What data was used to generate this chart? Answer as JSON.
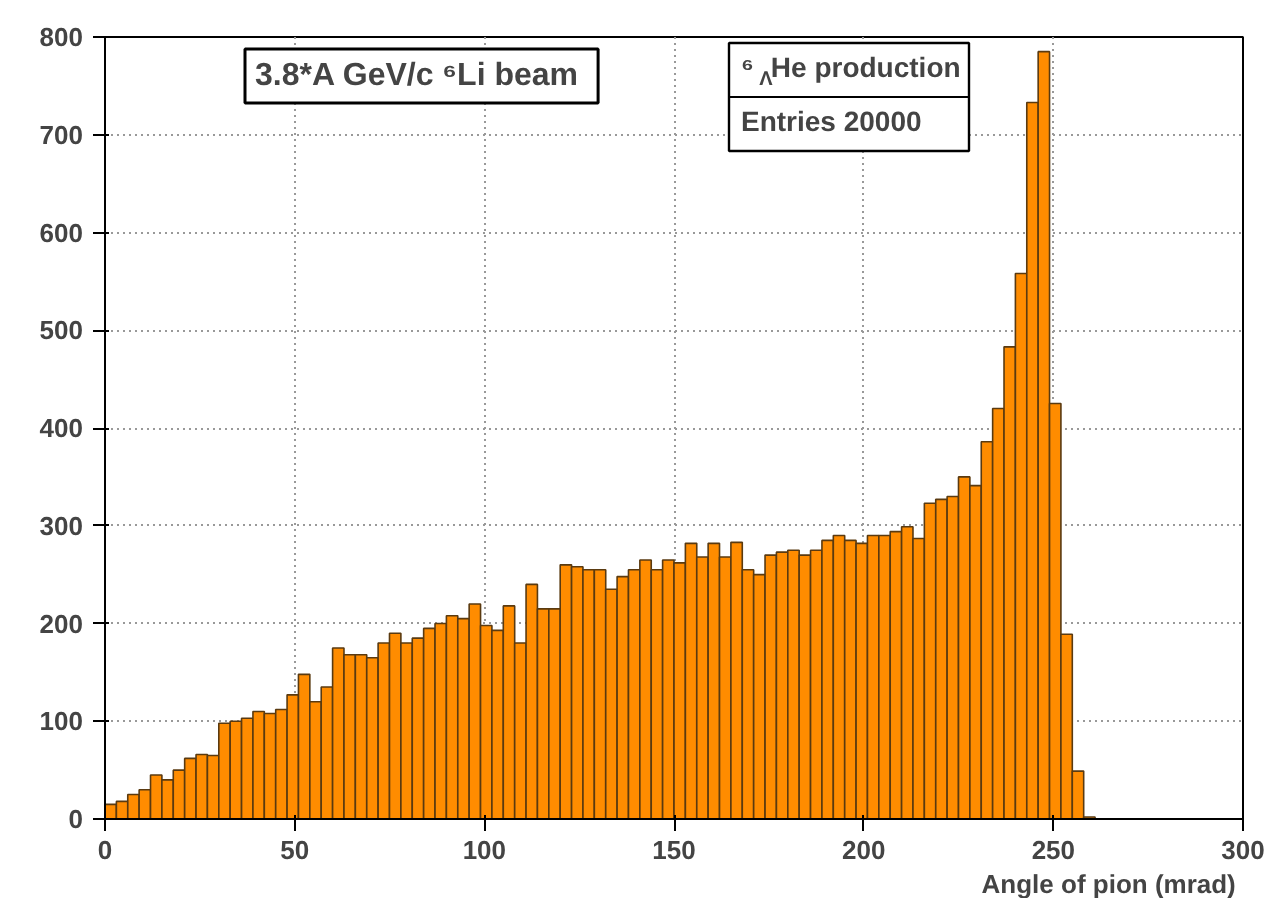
{
  "chart_data": {
    "type": "histogram",
    "title": "3.8*A GeV/c  ⁶Li beam",
    "annotations": [
      "⁶$_{Λ}$He production",
      "Entries   20000"
    ],
    "xlabel": "Angle of pion  (mrad)",
    "bins": [
      0,
      3,
      6,
      9,
      12,
      15,
      18,
      21,
      24,
      27,
      30,
      33,
      36,
      39,
      42,
      45,
      48,
      51,
      54,
      57,
      60,
      63,
      66,
      69,
      72,
      75,
      78,
      81,
      84,
      87,
      90,
      93,
      96,
      99,
      102,
      105,
      108,
      111,
      114,
      117,
      120,
      123,
      126,
      129,
      132,
      135,
      138,
      141,
      144,
      147,
      150,
      153,
      156,
      159,
      162,
      165,
      168,
      171,
      174,
      177,
      180,
      183,
      186,
      189,
      192,
      195,
      198,
      201,
      204,
      207,
      210,
      213,
      216,
      219,
      222,
      225,
      228,
      231,
      234,
      237,
      240,
      243,
      246,
      249,
      252,
      255,
      258,
      261,
      264,
      267,
      270,
      273,
      276,
      279,
      282,
      285,
      288,
      291,
      294,
      297,
      300
    ],
    "values": [
      15,
      18,
      25,
      30,
      45,
      40,
      50,
      62,
      66,
      65,
      98,
      100,
      103,
      110,
      108,
      112,
      127,
      148,
      120,
      135,
      175,
      168,
      168,
      165,
      180,
      190,
      180,
      185,
      195,
      200,
      208,
      205,
      220,
      198,
      193,
      218,
      180,
      240,
      215,
      215,
      260,
      258,
      255,
      255,
      235,
      248,
      255,
      265,
      255,
      265,
      262,
      282,
      268,
      282,
      268,
      283,
      255,
      250,
      270,
      273,
      275,
      270,
      275,
      285,
      290,
      285,
      282,
      290,
      290,
      294,
      299,
      287,
      323,
      327,
      330,
      350,
      341,
      386,
      420,
      483,
      558,
      733,
      785,
      425,
      189,
      49,
      2,
      0,
      0,
      0,
      0,
      0,
      0,
      0,
      0,
      0,
      0,
      0,
      0,
      0
    ],
    "color": "#ff8c00",
    "xlim": [
      0,
      300
    ],
    "ylim": [
      0,
      800
    ],
    "xticks": [
      0,
      50,
      100,
      150,
      200,
      250,
      300
    ],
    "yticks": [
      0,
      100,
      200,
      300,
      400,
      500,
      600,
      700,
      800
    ],
    "grid": true
  }
}
